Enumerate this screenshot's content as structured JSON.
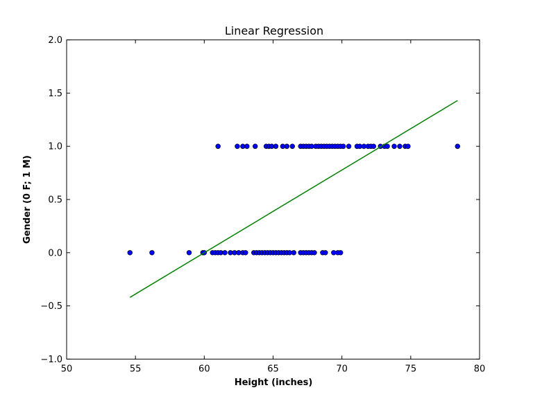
{
  "chart_data": {
    "type": "scatter",
    "title": "Linear Regression",
    "xlabel": "Height (inches)",
    "ylabel": "Gender (0 F; 1 M)",
    "xlim": [
      50,
      80
    ],
    "ylim": [
      -1.0,
      2.0
    ],
    "xticks": [
      50,
      55,
      60,
      65,
      70,
      75,
      80
    ],
    "yticks": [
      -1.0,
      -0.5,
      0.0,
      0.5,
      1.0,
      1.5,
      2.0
    ],
    "ytick_labels": [
      "−1.0",
      "−0.5",
      "0.0",
      "0.5",
      "1.0",
      "1.5",
      "2.0"
    ],
    "grid": false,
    "marker_color": "#0000ff",
    "line_color": "#008000",
    "series": [
      {
        "kind": "scatter",
        "points": [
          [
            54.6,
            0
          ],
          [
            56.2,
            0
          ],
          [
            58.9,
            0
          ],
          [
            59.9,
            0
          ],
          [
            60.0,
            0
          ],
          [
            60.6,
            0
          ],
          [
            60.8,
            0
          ],
          [
            61.0,
            0
          ],
          [
            61.2,
            0
          ],
          [
            61.5,
            0
          ],
          [
            61.9,
            0
          ],
          [
            62.2,
            0
          ],
          [
            62.5,
            0
          ],
          [
            62.8,
            0
          ],
          [
            63.0,
            0
          ],
          [
            63.6,
            0
          ],
          [
            63.8,
            0
          ],
          [
            64.0,
            0
          ],
          [
            64.2,
            0
          ],
          [
            64.4,
            0
          ],
          [
            64.6,
            0
          ],
          [
            64.8,
            0
          ],
          [
            65.0,
            0
          ],
          [
            65.2,
            0
          ],
          [
            65.4,
            0
          ],
          [
            65.6,
            0
          ],
          [
            65.8,
            0
          ],
          [
            66.0,
            0
          ],
          [
            66.2,
            0
          ],
          [
            66.5,
            0
          ],
          [
            67.0,
            0
          ],
          [
            67.2,
            0
          ],
          [
            67.4,
            0
          ],
          [
            67.6,
            0
          ],
          [
            67.8,
            0
          ],
          [
            68.0,
            0
          ],
          [
            68.6,
            0
          ],
          [
            68.8,
            0
          ],
          [
            69.4,
            0
          ],
          [
            69.7,
            0
          ],
          [
            69.9,
            0
          ],
          [
            61.0,
            1
          ],
          [
            62.4,
            1
          ],
          [
            62.8,
            1
          ],
          [
            63.1,
            1
          ],
          [
            63.7,
            1
          ],
          [
            64.5,
            1
          ],
          [
            64.7,
            1
          ],
          [
            64.9,
            1
          ],
          [
            65.2,
            1
          ],
          [
            65.7,
            1
          ],
          [
            66.0,
            1
          ],
          [
            66.4,
            1
          ],
          [
            67.0,
            1
          ],
          [
            67.2,
            1
          ],
          [
            67.4,
            1
          ],
          [
            67.6,
            1
          ],
          [
            67.8,
            1
          ],
          [
            68.1,
            1
          ],
          [
            68.3,
            1
          ],
          [
            68.5,
            1
          ],
          [
            68.7,
            1
          ],
          [
            68.9,
            1
          ],
          [
            69.1,
            1
          ],
          [
            69.3,
            1
          ],
          [
            69.5,
            1
          ],
          [
            69.7,
            1
          ],
          [
            69.9,
            1
          ],
          [
            70.1,
            1
          ],
          [
            70.5,
            1
          ],
          [
            71.1,
            1
          ],
          [
            71.3,
            1
          ],
          [
            71.6,
            1
          ],
          [
            71.9,
            1
          ],
          [
            72.1,
            1
          ],
          [
            72.3,
            1
          ],
          [
            72.8,
            1
          ],
          [
            73.1,
            1
          ],
          [
            73.3,
            1
          ],
          [
            73.8,
            1
          ],
          [
            74.2,
            1
          ],
          [
            74.6,
            1
          ],
          [
            74.8,
            1
          ],
          [
            78.4,
            1
          ]
        ]
      },
      {
        "kind": "line",
        "points": [
          [
            54.6,
            -0.42
          ],
          [
            78.4,
            1.43
          ]
        ]
      }
    ]
  }
}
